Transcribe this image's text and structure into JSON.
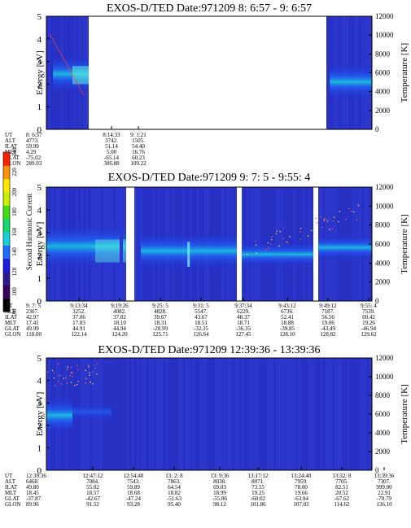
{
  "chart_data": {
    "type": "heatmap",
    "colorbar": {
      "label": "Second Harmonic Current",
      "ticks": [
        "80",
        "100",
        "120",
        "140",
        "160",
        "180",
        "200",
        "220",
        "240"
      ],
      "colors": [
        "#000000",
        "#3a0060",
        "#2a1a90",
        "#1a1ae0",
        "#1e6cff",
        "#16d2d8",
        "#18d870",
        "#40e010",
        "#c8f000",
        "#ffe800",
        "#ff9000",
        "#ff2000"
      ]
    },
    "panels": [
      {
        "title": "EXOS-D/TED   Date:971209  8: 6:57 - 9: 6:57",
        "ylabel": "Energy [eV]",
        "ylabel_right": "Temperature [K]",
        "ylim": [
          0,
          5
        ],
        "yticks": [
          "0",
          "1",
          "2",
          "3",
          "4",
          "5"
        ],
        "yticks_right": [
          "0",
          "2000",
          "4000",
          "6000",
          "8000",
          "10000",
          "12000"
        ],
        "ephemeris_labels": [
          "UT",
          "ALT",
          "ILAT",
          "MLT",
          "GLAT",
          "GLON"
        ],
        "ephemeris": [
          [
            "8: 6:57",
            "4773.",
            "59.99",
            "4.29",
            "-75.02",
            "289.03"
          ],
          [
            "8:14:33",
            "3742.",
            "51.14",
            "5.00",
            "-65.14",
            "306.88"
          ],
          [
            "9: 1:21",
            "1505.",
            "54.40",
            "16.76",
            "60.23",
            "109.22"
          ]
        ],
        "data_segments": [
          {
            "t0": 0.0,
            "t1": 0.13,
            "kind": "dense"
          },
          {
            "t0": 0.86,
            "t1": 1.0,
            "kind": "dense"
          }
        ]
      },
      {
        "title": "EXOS-D/TED   Date:971209  9: 7: 5 - 9:55: 4",
        "ylabel": "Energy [eV]",
        "ylabel_right": "Temperature [K]",
        "ylim": [
          0,
          5
        ],
        "yticks": [
          "0",
          "1",
          "2",
          "3",
          "4",
          "5"
        ],
        "yticks_right": [
          "0",
          "2000",
          "4000",
          "6000",
          "8000",
          "10000",
          "12000"
        ],
        "ephemeris_labels": [
          "UT",
          "ALT",
          "ILAT",
          "MLT",
          "GLAT",
          "GLON"
        ],
        "ephemeris": [
          [
            "9: 7: 5",
            "2307.",
            "42.97",
            "17.41",
            "49.99",
            "118.00"
          ],
          [
            "9:13:34",
            "3252.",
            "37.06",
            "17.83",
            "44.91",
            "122.14"
          ],
          [
            "9:19:26",
            "4082.",
            "37.02",
            "18.10",
            "44.94",
            "124.20"
          ],
          [
            "9:25: 5",
            "4828.",
            "39.67",
            "18.31",
            "-28.99",
            "125.71"
          ],
          [
            "9:31: 5",
            "5547.",
            "43.67",
            "18.51",
            "-32.35",
            "126.64"
          ],
          [
            "9:37:34",
            "6229.",
            "48.37",
            "18.71",
            "-36.35",
            "127.45"
          ],
          [
            "9:43:12",
            "6736.",
            "52.41",
            "18.88",
            "-39.85",
            "128.10"
          ],
          [
            "9:49:12",
            "7187.",
            "56.56",
            "19.06",
            "-43.49",
            "128.82"
          ],
          [
            "9:55: 4",
            "7539.",
            "60.42",
            "19.26",
            "-46.94",
            "129.62"
          ]
        ],
        "data_segments": [
          {
            "t0": 0.0,
            "t1": 0.245,
            "kind": "dense"
          },
          {
            "t0": 0.27,
            "t1": 0.29,
            "kind": "gap"
          },
          {
            "t0": 0.29,
            "t1": 0.585,
            "kind": "dense"
          },
          {
            "t0": 0.6,
            "t1": 0.82,
            "kind": "dense"
          },
          {
            "t0": 0.835,
            "t1": 1.0,
            "kind": "dense"
          }
        ]
      },
      {
        "title": "EXOS-D/TED   Date:971209  12:39:36 - 13:39:36",
        "ylabel": "Energy [eV]",
        "ylabel_right": "Temperature [K]",
        "ylim": [
          0,
          5
        ],
        "yticks": [
          "0",
          "1",
          "2",
          "3",
          "4",
          "5"
        ],
        "yticks_right": [
          "0",
          "2000",
          "4000",
          "6000",
          "8000",
          "10000",
          "12000"
        ],
        "ephemeris_labels": [
          "UT",
          "ALT",
          "ILAT",
          "MLT",
          "GLAT",
          "GLON"
        ],
        "ephemeris": [
          [
            "12:39:36",
            "6468.",
            "49.80",
            "18.45",
            "-37.87",
            "89.96"
          ],
          [
            "12:47:12",
            "7084.",
            "55.02",
            "18.57",
            "-42.67",
            "91.52"
          ],
          [
            "12:54:40",
            "7543.",
            "59.89",
            "18.68",
            "-47.24",
            "93.28"
          ],
          [
            "13: 2: 8",
            "7863.",
            "64.54",
            "18.82",
            "-51.63",
            "95.40"
          ],
          [
            "13: 9:36",
            "8038.",
            "69.03",
            "18.99",
            "-55.86",
            "98.12"
          ],
          [
            "13:17:12",
            "8071.",
            "73.55",
            "19.25",
            "-60.02",
            "101.86"
          ],
          [
            "13:24:40",
            "7959.",
            "78.00",
            "19.66",
            "-63.94",
            "107.03"
          ],
          [
            "13:32: 8",
            "7705.",
            "82.51",
            "20.52",
            "-67.62",
            "114.62"
          ],
          [
            "13:39:36",
            "7307.",
            "999.00",
            "22.91",
            "-70.79",
            "136.10"
          ]
        ],
        "data_segments": [
          {
            "t0": 0.0,
            "t1": 1.0,
            "kind": "dense"
          }
        ]
      }
    ]
  }
}
